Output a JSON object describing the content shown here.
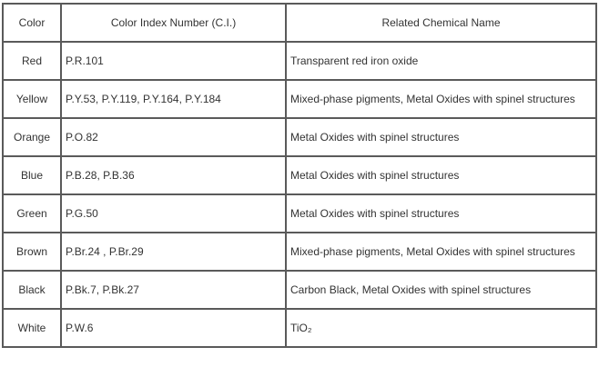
{
  "table": {
    "headers": [
      "Color",
      "Color Index Number (C.I.)",
      "Related Chemical Name"
    ],
    "rows": [
      {
        "color": "Red",
        "ci": "P.R.101",
        "chemical": "Transparent red iron oxide"
      },
      {
        "color": "Yellow",
        "ci": "P.Y.53, P.Y.119, P.Y.164, P.Y.184",
        "chemical": "Mixed-phase pigments, Metal Oxides with spinel structures"
      },
      {
        "color": "Orange",
        "ci": "P.O.82",
        "chemical": "Metal Oxides with spinel structures"
      },
      {
        "color": "Blue",
        "ci": "P.B.28, P.B.36",
        "chemical": "Metal Oxides with spinel structures"
      },
      {
        "color": "Green",
        "ci": "P.G.50",
        "chemical": "Metal Oxides with spinel structures"
      },
      {
        "color": "Brown",
        "ci": "P.Br.24 , P.Br.29",
        "chemical": "Mixed-phase pigments, Metal Oxides with spinel structures"
      },
      {
        "color": "Black",
        "ci": "P.Bk.7, P.Bk.27",
        "chemical": "Carbon Black, Metal Oxides with spinel structures"
      },
      {
        "color": "White",
        "ci": "P.W.6",
        "chemical": "TiO₂"
      }
    ]
  }
}
